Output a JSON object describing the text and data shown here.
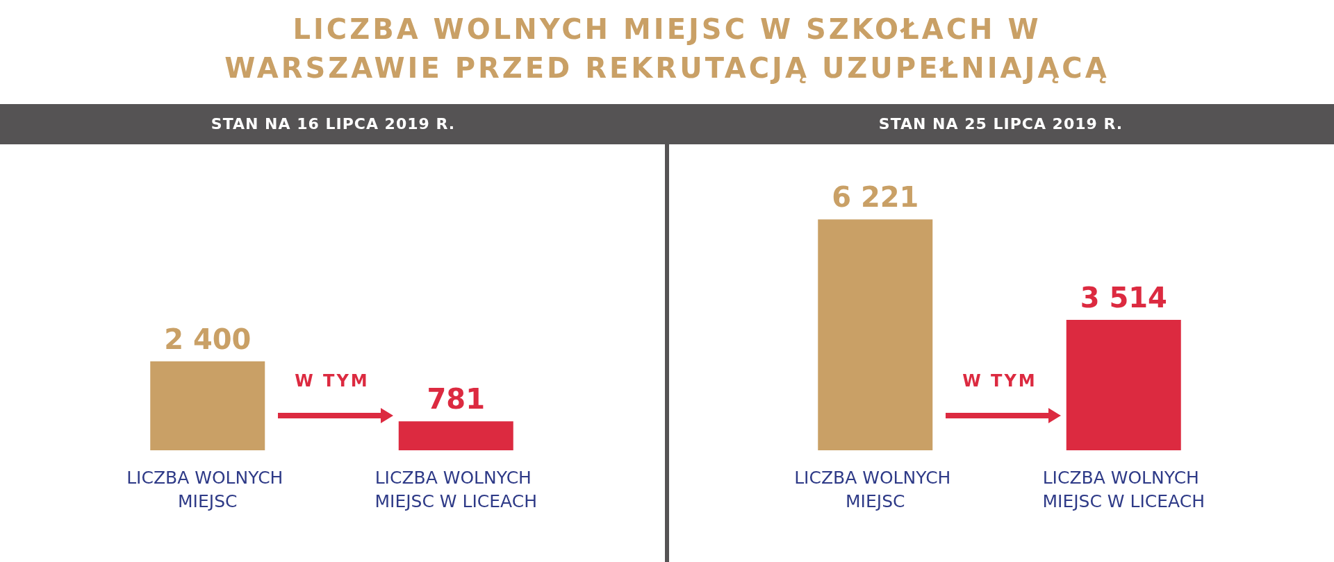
{
  "chart_data": [
    {
      "type": "bar",
      "title": "LICZBA WOLNYCH MIEJSC W SZKOŁACH W WARSZAWIE PRZED REKRUTACJĄ UZUPEŁNIAJĄCĄ",
      "subtitle": "STAN NA 16 LIPCA 2019 R.",
      "categories": [
        "LICZBA WOLNYCH MIEJSC",
        "LICZBA WOLNYCH MIEJSC W LICEACH"
      ],
      "values": [
        2400,
        781
      ],
      "colors": [
        "#c9a066",
        "#dc2a40"
      ],
      "value_labels": [
        "2 400",
        "781"
      ],
      "annotations": [
        "W TYM"
      ],
      "tick_labels": "x"
    },
    {
      "type": "bar",
      "subtitle": "STAN NA 25 LIPCA 2019 R.",
      "categories": [
        "LICZBA WOLNYCH MIEJSC",
        "LICZBA WOLNYCH MIEJSC W LICEACH"
      ],
      "values": [
        6221,
        3514
      ],
      "colors": [
        "#c9a066",
        "#dc2a40"
      ],
      "value_labels": [
        "6 221",
        "3 514"
      ],
      "annotations": [
        "W TYM"
      ],
      "tick_labels": "x"
    }
  ]
}
